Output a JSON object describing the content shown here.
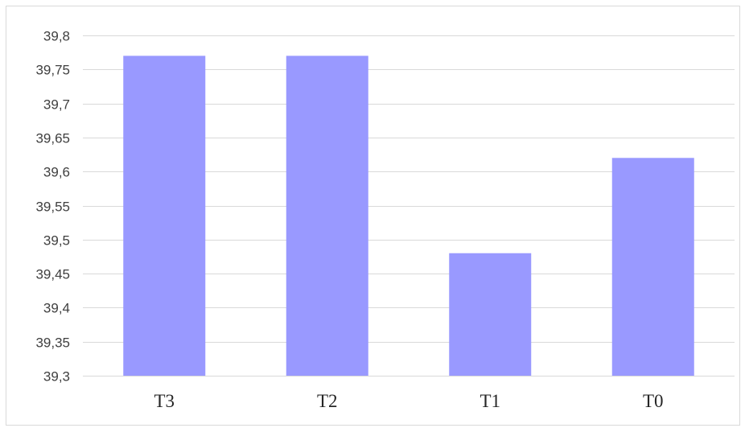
{
  "chart_data": {
    "type": "bar",
    "title": "",
    "xlabel": "",
    "ylabel": "",
    "categories": [
      "T3",
      "T2",
      "T1",
      "T0"
    ],
    "series": [
      {
        "values": [
          39.77,
          39.77,
          39.48,
          39.62
        ]
      }
    ],
    "ylim": [
      39.3,
      39.8
    ],
    "y_ticks": [
      "39,3",
      "39,35",
      "39,4",
      "39,45",
      "39,5",
      "39,55",
      "39,6",
      "39,65",
      "39,7",
      "39,75",
      "39,8"
    ],
    "y_tick_values": [
      39.3,
      39.35,
      39.4,
      39.45,
      39.5,
      39.55,
      39.6,
      39.65,
      39.7,
      39.75,
      39.8
    ],
    "grid": true,
    "legend": "none",
    "bar_color": "#9999ff"
  }
}
